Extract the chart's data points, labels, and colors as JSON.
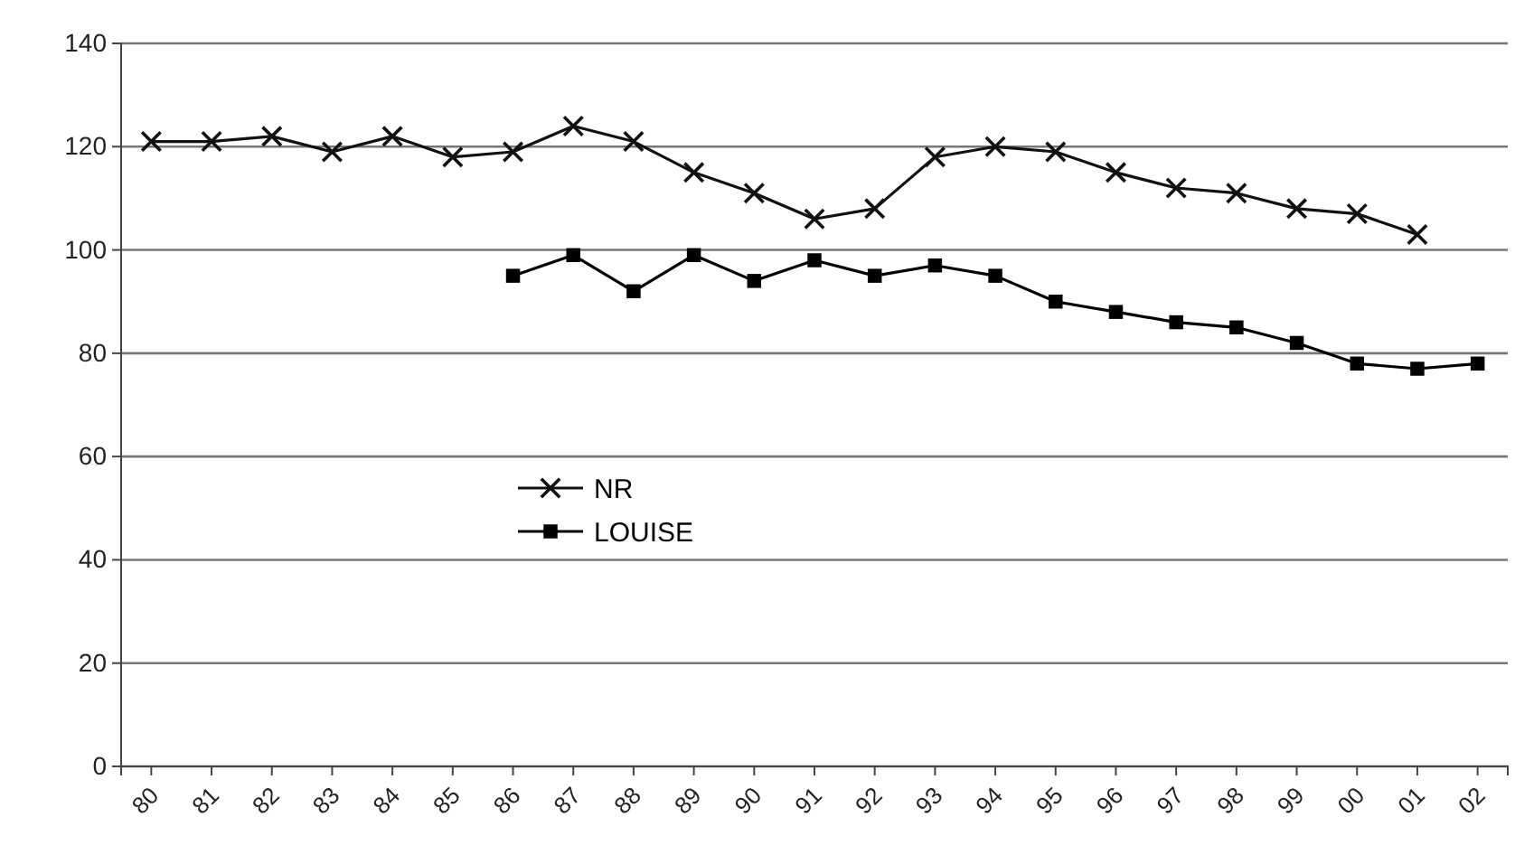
{
  "chart_data": {
    "type": "line",
    "categories": [
      "80",
      "81",
      "82",
      "83",
      "84",
      "85",
      "86",
      "87",
      "88",
      "89",
      "90",
      "91",
      "92",
      "93",
      "94",
      "95",
      "96",
      "97",
      "98",
      "99",
      "00",
      "01",
      "02"
    ],
    "series": [
      {
        "name": "NR",
        "color": "#111111",
        "marker": "cross",
        "values": [
          121,
          121,
          122,
          119,
          122,
          118,
          119,
          124,
          121,
          115,
          111,
          106,
          108,
          118,
          120,
          119,
          115,
          112,
          111,
          108,
          107,
          103,
          null
        ]
      },
      {
        "name": "LOUISE",
        "color": "#000000",
        "marker": "square",
        "values": [
          null,
          null,
          null,
          null,
          null,
          null,
          95,
          99,
          92,
          99,
          94,
          98,
          95,
          97,
          95,
          90,
          88,
          86,
          85,
          82,
          78,
          77,
          78
        ]
      }
    ],
    "ylim": [
      0,
      140
    ],
    "yticks": [
      0,
      20,
      40,
      60,
      80,
      100,
      120,
      140
    ],
    "grid": "y",
    "legend": "center"
  }
}
